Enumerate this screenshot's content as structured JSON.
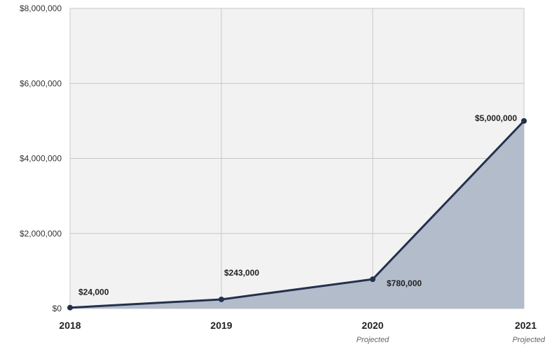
{
  "chart_data": {
    "type": "area",
    "categories": [
      "2018",
      "2019",
      "2020",
      "2021"
    ],
    "category_notes": [
      "",
      "",
      "Projected",
      "Projected"
    ],
    "values": [
      24000,
      243000,
      780000,
      5000000
    ],
    "value_labels": [
      "$24,000",
      "$243,000",
      "$780,000",
      "$5,000,000"
    ],
    "ylim": [
      0,
      8000000
    ],
    "yticks": [
      0,
      2000000,
      4000000,
      6000000,
      8000000
    ],
    "ytick_labels": [
      "$0",
      "$2,000,000",
      "$4,000,000",
      "$6,000,000",
      "$8,000,000"
    ],
    "grid": true,
    "colors": {
      "plot_background": "#f2f2f2",
      "grid": "#c8c8c8",
      "line": "#23314d",
      "area": "#b3bccb"
    }
  }
}
